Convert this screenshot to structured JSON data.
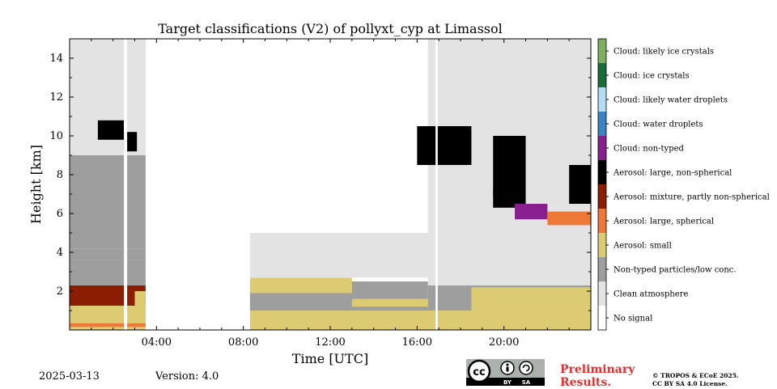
{
  "chart_data": {
    "type": "heatmap",
    "title": "Target classifications (V2) of pollyxt_cyp at Limassol",
    "xlabel": "Time [UTC]",
    "ylabel": "Height [km]",
    "xlim_hours": [
      0,
      24
    ],
    "ylim_km": [
      0,
      15
    ],
    "x_ticks": [
      {
        "hour": 4,
        "label": "04:00"
      },
      {
        "hour": 8,
        "label": "08:00"
      },
      {
        "hour": 12,
        "label": "12:00"
      },
      {
        "hour": 16,
        "label": "16:00"
      },
      {
        "hour": 20,
        "label": "20:00"
      }
    ],
    "y_ticks": [
      {
        "km": 2,
        "label": "2"
      },
      {
        "km": 4,
        "label": "4"
      },
      {
        "km": 6,
        "label": "6"
      },
      {
        "km": 8,
        "label": "8"
      },
      {
        "km": 10,
        "label": "10"
      },
      {
        "km": 12,
        "label": "12"
      },
      {
        "km": 14,
        "label": "14"
      }
    ],
    "classes": [
      {
        "id": 0,
        "label": "No signal",
        "color": "#ffffff"
      },
      {
        "id": 1,
        "label": "Clean atmosphere",
        "color": "#e3e3e3"
      },
      {
        "id": 2,
        "label": "Non-typed particles/low conc.",
        "color": "#9e9e9e"
      },
      {
        "id": 3,
        "label": "Aerosol: small",
        "color": "#dccb72"
      },
      {
        "id": 4,
        "label": "Aerosol: large, spherical",
        "color": "#ee7838"
      },
      {
        "id": 5,
        "label": "Aerosol: mixture, partly non-spherical",
        "color": "#8b1d02"
      },
      {
        "id": 6,
        "label": "Aerosol: large, non-spherical",
        "color": "#000000"
      },
      {
        "id": 7,
        "label": "Cloud: non-typed",
        "color": "#871f8e"
      },
      {
        "id": 8,
        "label": "Cloud: water droplets",
        "color": "#3b84c4"
      },
      {
        "id": 9,
        "label": "Cloud: likely water droplets",
        "color": "#b4dcf4"
      },
      {
        "id": 10,
        "label": "Cloud: ice crystals",
        "color": "#186c37"
      },
      {
        "id": 11,
        "label": "Cloud: likely ice crystals",
        "color": "#7fae5d"
      }
    ],
    "regions": [
      {
        "t0": 0.0,
        "t1": 3.5,
        "h0": 0.0,
        "h1": 0.15,
        "class": 3
      },
      {
        "t0": 0.0,
        "t1": 3.5,
        "h0": 0.15,
        "h1": 0.35,
        "class": 4
      },
      {
        "t0": 0.0,
        "t1": 3.5,
        "h0": 0.35,
        "h1": 1.25,
        "class": 3
      },
      {
        "t0": 0.0,
        "t1": 3.5,
        "h0": 1.25,
        "h1": 2.3,
        "class": 5
      },
      {
        "t0": 3.0,
        "t1": 3.5,
        "h0": 1.0,
        "h1": 2.0,
        "class": 3
      },
      {
        "t0": 0.0,
        "t1": 3.5,
        "h0": 2.3,
        "h1": 3.6,
        "class": 2
      },
      {
        "t0": 0.0,
        "t1": 3.5,
        "h0": 3.6,
        "h1": 4.2,
        "class": 2
      },
      {
        "t0": 0.0,
        "t1": 3.5,
        "h0": 4.2,
        "h1": 9.0,
        "class": 2
      },
      {
        "t0": 0.0,
        "t1": 3.5,
        "h0": 9.0,
        "h1": 15.0,
        "class": 1
      },
      {
        "t0": 1.3,
        "t1": 2.5,
        "h0": 9.8,
        "h1": 10.8,
        "class": 6
      },
      {
        "t0": 2.5,
        "t1": 3.1,
        "h0": 9.2,
        "h1": 10.2,
        "class": 6
      },
      {
        "t0": 8.3,
        "t1": 24.0,
        "h0": 0.0,
        "h1": 1.0,
        "class": 3
      },
      {
        "t0": 8.3,
        "t1": 16.5,
        "h0": 1.0,
        "h1": 2.5,
        "class": 2
      },
      {
        "t0": 8.3,
        "t1": 13.0,
        "h0": 1.9,
        "h1": 2.7,
        "class": 3
      },
      {
        "t0": 13.0,
        "t1": 16.5,
        "h0": 1.2,
        "h1": 1.6,
        "class": 3
      },
      {
        "t0": 8.3,
        "t1": 16.5,
        "h0": 2.7,
        "h1": 5.0,
        "class": 1
      },
      {
        "t0": 16.5,
        "t1": 24.0,
        "h0": 1.0,
        "h1": 2.3,
        "class": 2
      },
      {
        "t0": 18.5,
        "t1": 24.0,
        "h0": 1.0,
        "h1": 2.2,
        "class": 3
      },
      {
        "t0": 16.5,
        "t1": 24.0,
        "h0": 2.3,
        "h1": 15.0,
        "class": 1
      },
      {
        "t0": 16.0,
        "t1": 18.5,
        "h0": 8.5,
        "h1": 10.5,
        "class": 6
      },
      {
        "t0": 19.5,
        "t1": 21.0,
        "h0": 7.0,
        "h1": 10.0,
        "class": 6
      },
      {
        "t0": 19.5,
        "t1": 21.0,
        "h0": 6.3,
        "h1": 7.2,
        "class": 6
      },
      {
        "t0": 20.5,
        "t1": 22.0,
        "h0": 5.7,
        "h1": 6.5,
        "class": 7
      },
      {
        "t0": 22.0,
        "t1": 24.0,
        "h0": 5.4,
        "h1": 6.1,
        "class": 4
      },
      {
        "t0": 23.0,
        "t1": 24.0,
        "h0": 6.5,
        "h1": 8.5,
        "class": 6
      }
    ],
    "no_signal_gaps": [
      {
        "t0": 2.5,
        "t1": 2.65
      },
      {
        "t0": 3.55,
        "t1": 8.3
      },
      {
        "t0": 16.85,
        "t1": 16.95
      }
    ]
  },
  "footer": {
    "date": "2025-03-13",
    "version": "Version: 4.0",
    "preliminary_line1": "Preliminary",
    "preliminary_line2": "Results.",
    "copyright_line1": "© TROPOS & ECoE 2025.",
    "copyright_line2": "CC BY SA 4.0 License.",
    "cc_text": "cc",
    "cc_by": "BY",
    "cc_sa": "SA"
  }
}
